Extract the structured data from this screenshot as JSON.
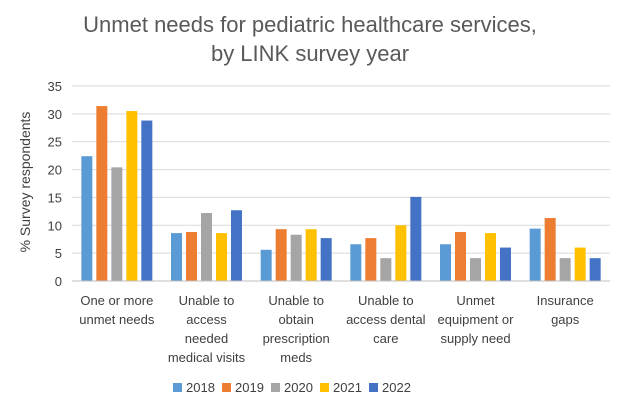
{
  "chart_data": {
    "type": "bar",
    "title_lines": [
      "Unmet needs for pediatric healthcare services,",
      "by LINK survey year"
    ],
    "ylabel": "% Survey respondents",
    "xlabel": "",
    "ylim": [
      0,
      35
    ],
    "yticks": [
      0,
      5,
      10,
      15,
      20,
      25,
      30,
      35
    ],
    "grid": true,
    "legend_position": "bottom",
    "categories": [
      [
        "One or more",
        "unmet needs"
      ],
      [
        "Unable to",
        "access",
        "needed",
        "medical visits"
      ],
      [
        "Unable to",
        "obtain",
        "prescription",
        "meds"
      ],
      [
        "Unable to",
        "access dental",
        "care"
      ],
      [
        "Unmet",
        "equipment or",
        "supply need"
      ],
      [
        "Insurance",
        "gaps"
      ]
    ],
    "series": [
      {
        "name": "2018",
        "color": "#5b9bd5",
        "values": [
          22.4,
          8.6,
          5.6,
          6.6,
          6.6,
          9.4
        ]
      },
      {
        "name": "2019",
        "color": "#ed7d31",
        "values": [
          31.4,
          8.8,
          9.3,
          7.7,
          8.8,
          11.3
        ]
      },
      {
        "name": "2020",
        "color": "#a5a5a5",
        "values": [
          20.4,
          12.2,
          8.3,
          4.1,
          4.1,
          4.1
        ]
      },
      {
        "name": "2021",
        "color": "#ffc000",
        "values": [
          30.5,
          8.6,
          9.3,
          10.0,
          8.6,
          6.0
        ]
      },
      {
        "name": "2022",
        "color": "#4472c4",
        "values": [
          28.8,
          12.7,
          7.7,
          15.1,
          6.0,
          4.1
        ]
      }
    ]
  }
}
